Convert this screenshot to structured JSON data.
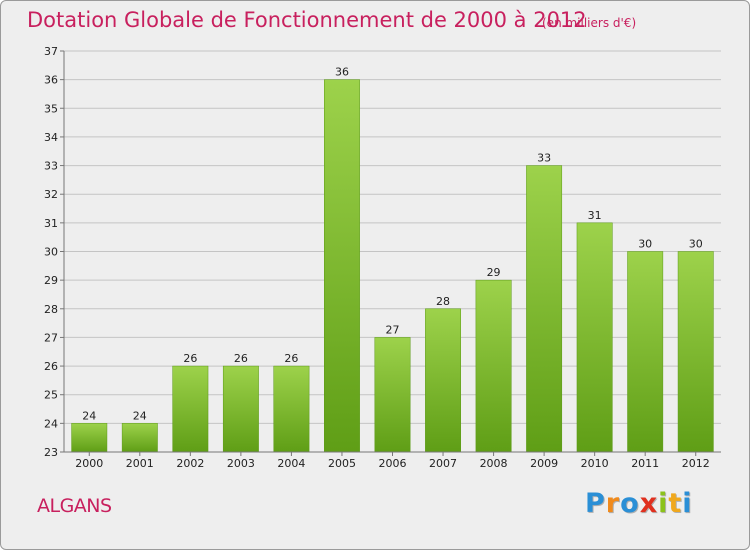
{
  "chart_data": {
    "type": "bar",
    "title": "Dotation Globale de Fonctionnement de 2000 à 2012",
    "subtitle": "(en milliers d'€)",
    "categories": [
      "2000",
      "2001",
      "2002",
      "2003",
      "2004",
      "2005",
      "2006",
      "2007",
      "2008",
      "2009",
      "2010",
      "2011",
      "2012"
    ],
    "values": [
      24,
      24,
      26,
      26,
      26,
      36,
      27,
      28,
      29,
      33,
      31,
      30,
      30
    ],
    "ylim": [
      23,
      37
    ],
    "yticks": [
      23,
      24,
      25,
      26,
      27,
      28,
      29,
      30,
      31,
      32,
      33,
      34,
      35,
      36,
      37
    ],
    "grid": true,
    "bar_color": "#7cbc2a"
  },
  "footer": {
    "place": "ALGANS",
    "logo": [
      "P",
      "r",
      "o",
      "x",
      "i",
      "t",
      "i"
    ],
    "logo_colors": [
      "#2a8fd6",
      "#f08a1c",
      "#2a8fd6",
      "#e0301e",
      "#8bc21a",
      "#f0a81c",
      "#2a8fd6"
    ]
  }
}
